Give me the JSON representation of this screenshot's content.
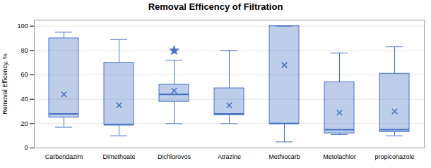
{
  "chart_data": {
    "type": "box",
    "title": "Removal Efficency of Filtration",
    "ylabel": "Removal Efficency, %",
    "categories": [
      "Carbendazim",
      "Dimethoate",
      "Dichlorovos",
      "Atrazine",
      "Methiocarb",
      "Metolachlor",
      "propiconazole"
    ],
    "whislo": [
      17,
      10,
      20,
      20,
      5,
      11,
      10
    ],
    "q1": [
      25,
      19,
      38,
      27,
      20,
      12,
      13
    ],
    "med": [
      28,
      19,
      44,
      28,
      20,
      15,
      15
    ],
    "q3": [
      90,
      70,
      52,
      49,
      100,
      54,
      61
    ],
    "whishi": [
      95,
      89,
      72,
      80,
      100,
      78,
      83
    ],
    "mean": [
      44,
      35,
      47,
      35,
      68,
      29,
      30
    ],
    "fliers": [
      [],
      [],
      [
        80
      ],
      [],
      [],
      [],
      []
    ],
    "color": "#4472C4",
    "marker": "x",
    "ylim": [
      0,
      105
    ],
    "yticks": [
      0,
      20,
      40,
      60,
      80,
      100
    ],
    "grid": true
  }
}
